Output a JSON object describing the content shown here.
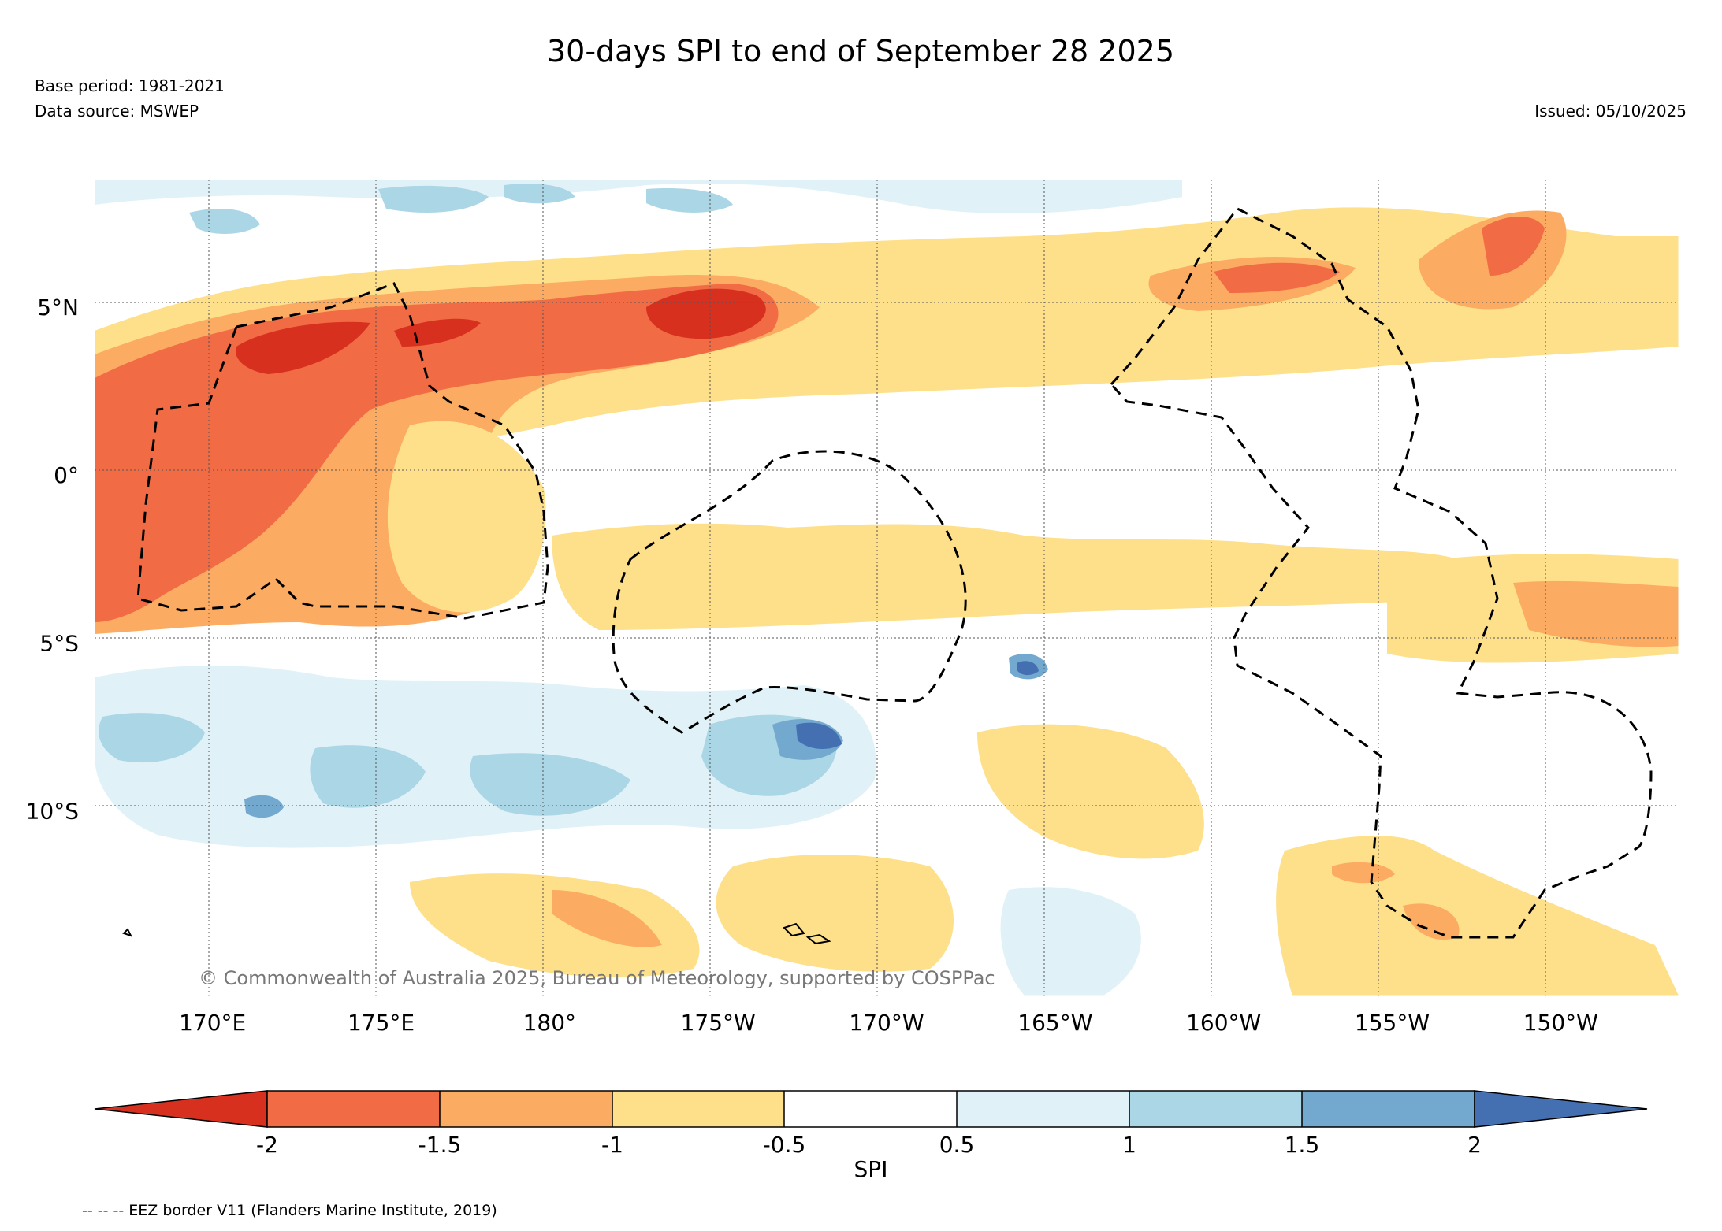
{
  "title": "30-days SPI to end of September 28 2025",
  "base_period": "Base period: 1981-2021",
  "data_source": "Data source: MSWEP",
  "issued": "Issued: 05/10/2025",
  "copyright": "© Commonwealth of Australia 2025, Bureau of Meteorology, supported by COSPPac",
  "eez_note": "-- -- -- EEZ border V11 (Flanders Marine Institute, 2019)",
  "map": {
    "lon_range": [
      166.5,
      213.5
    ],
    "lat_range": [
      -15.5,
      8.8
    ],
    "lat_ticks": [
      {
        "value": 5,
        "label": "5°N"
      },
      {
        "value": 0,
        "label": "0°"
      },
      {
        "value": -5,
        "label": "5°S"
      },
      {
        "value": -10,
        "label": "10°S"
      }
    ],
    "lon_ticks": [
      {
        "value": 170,
        "label": "170°E"
      },
      {
        "value": 175,
        "label": "175°E"
      },
      {
        "value": 180,
        "label": "180°"
      },
      {
        "value": 185,
        "label": "175°W"
      },
      {
        "value": 190,
        "label": "170°W"
      },
      {
        "value": 195,
        "label": "165°W"
      },
      {
        "value": 200,
        "label": "160°W"
      },
      {
        "value": 205,
        "label": "155°W"
      },
      {
        "value": 210,
        "label": "150°W"
      }
    ]
  },
  "colorbar": {
    "label": "SPI",
    "ticks": [
      "-2",
      "-1.5",
      "-1",
      "-0.5",
      "0.5",
      "1",
      "1.5",
      "2"
    ],
    "colors": {
      "lt_-2": "#d7301f",
      "-2_-1.5": "#f16b44",
      "-1.5_-1": "#fcab62",
      "-1_-0.5": "#fee08b",
      "-0.5_0.5": "#ffffff",
      "0.5_1": "#e0f2f8",
      "1_1.5": "#abd6e6",
      "1.5_2": "#74a9cf",
      "gt_2": "#4470b2"
    }
  }
}
